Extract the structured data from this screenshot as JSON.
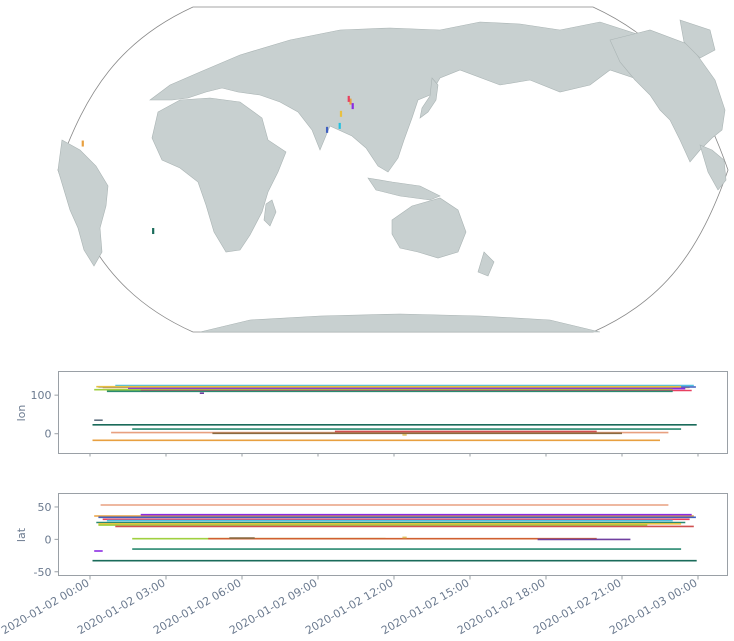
{
  "colors": {
    "land": "#c8d0d0",
    "tick_text": "#6b7a8f",
    "frame": "#9aa0a6"
  },
  "chart_data": [
    {
      "type": "map",
      "projection": "robinson",
      "central_longitude": 150,
      "markers": [
        {
          "lon": 126.5,
          "lat": 38.0,
          "color": "#e8a040"
        },
        {
          "lon": 127.8,
          "lat": 35.5,
          "color": "#8a2be2"
        },
        {
          "lon": 125.5,
          "lat": 39.5,
          "color": "#e84060"
        },
        {
          "lon": 121.5,
          "lat": 31.2,
          "color": "#e8c040"
        },
        {
          "lon": 121.0,
          "lat": 24.5,
          "color": "#20c0e0"
        },
        {
          "lon": 114.2,
          "lat": 22.3,
          "color": "#4060c0"
        },
        {
          "lon": -17.4,
          "lat": 14.7,
          "color": "#e8a040"
        },
        {
          "lon": 18.4,
          "lat": -33.9,
          "color": "#1a6b5a"
        }
      ]
    },
    {
      "type": "line",
      "ylabel": "lon",
      "ylim": [
        -50,
        160
      ],
      "yticks": [
        0,
        100
      ],
      "xlim": [
        "2020-01-02 00:00",
        "2020-01-03 00:00"
      ],
      "series": [
        {
          "color": "#e8a040",
          "x": [
            "2020-01-02 00:06",
            "2020-01-02 22:30"
          ],
          "y": [
            -17,
            -17
          ]
        },
        {
          "color": "#1a6b5a",
          "x": [
            "2020-01-02 00:06",
            "2020-01-02 23:57"
          ],
          "y": [
            23,
            23
          ]
        },
        {
          "color": "#2a8a70",
          "x": [
            "2020-01-02 01:40",
            "2020-01-02 23:20"
          ],
          "y": [
            12,
            12
          ]
        },
        {
          "color": "#e8a080",
          "x": [
            "2020-01-02 00:50",
            "2020-01-02 22:50"
          ],
          "y": [
            3,
            3
          ]
        },
        {
          "color": "#d05050",
          "x": [
            "2020-01-02 09:40",
            "2020-01-02 20:00"
          ],
          "y": [
            6,
            6
          ]
        },
        {
          "color": "#8a6a40",
          "x": [
            "2020-01-02 04:50",
            "2020-01-02 21:00"
          ],
          "y": [
            1,
            1
          ]
        },
        {
          "color": "#e0c060",
          "x": [
            "2020-01-02 12:20",
            "2020-01-02 12:30"
          ],
          "y": [
            -3,
            -3
          ]
        },
        {
          "color": "#50c0e0",
          "x": [
            "2020-01-02 01:00",
            "2020-01-02 23:50"
          ],
          "y": [
            125,
            125
          ]
        },
        {
          "color": "#e8a040",
          "x": [
            "2020-01-02 00:30",
            "2020-01-02 23:40"
          ],
          "y": [
            120,
            120
          ]
        },
        {
          "color": "#4060c0",
          "x": [
            "2020-01-02 00:20",
            "2020-01-02 23:55"
          ],
          "y": [
            121,
            121
          ]
        },
        {
          "color": "#8a2be2",
          "x": [
            "2020-01-02 01:30",
            "2020-01-02 23:30"
          ],
          "y": [
            117,
            117
          ]
        },
        {
          "color": "#a0d040",
          "x": [
            "2020-01-02 00:10",
            "2020-01-02 23:00"
          ],
          "y": [
            114,
            114
          ]
        },
        {
          "color": "#e84060",
          "x": [
            "2020-01-02 02:00",
            "2020-01-02 23:45"
          ],
          "y": [
            112,
            112
          ]
        },
        {
          "color": "#2a8a70",
          "x": [
            "2020-01-02 00:40",
            "2020-01-02 23:00"
          ],
          "y": [
            110,
            110
          ]
        },
        {
          "color": "#e8c040",
          "x": [
            "2020-01-02 00:15",
            "2020-01-02 23:20"
          ],
          "y": [
            122,
            122
          ]
        },
        {
          "color": "#7040a0",
          "x": [
            "2020-01-02 04:20",
            "2020-01-02 04:30"
          ],
          "y": [
            105,
            105
          ]
        },
        {
          "color": "#607080",
          "x": [
            "2020-01-02 00:10",
            "2020-01-02 00:30"
          ],
          "y": [
            35,
            35
          ]
        }
      ]
    },
    {
      "type": "line",
      "ylabel": "lat",
      "ylim": [
        -55,
        70
      ],
      "yticks": [
        -50,
        0,
        50
      ],
      "xlim": [
        "2020-01-02 00:00",
        "2020-01-03 00:00"
      ],
      "xticks": [
        "2020-01-02 00:00",
        "2020-01-02 03:00",
        "2020-01-02 06:00",
        "2020-01-02 09:00",
        "2020-01-02 12:00",
        "2020-01-02 15:00",
        "2020-01-02 18:00",
        "2020-01-02 21:00",
        "2020-01-03 00:00"
      ],
      "xtick_labels": [
        "2020-01-02 00:00",
        "2020-01-02 03:00",
        "2020-01-02 06:00",
        "2020-01-02 09:00",
        "2020-01-02 12:00",
        "2020-01-02 15:00",
        "2020-01-02 18:00",
        "2020-01-02 21:00",
        "2020-01-03 00:00"
      ],
      "series": [
        {
          "color": "#e8a080",
          "x": [
            "2020-01-02 00:25",
            "2020-01-02 22:50"
          ],
          "y": [
            53,
            53
          ]
        },
        {
          "color": "#1a6b5a",
          "x": [
            "2020-01-02 00:06",
            "2020-01-02 23:57"
          ],
          "y": [
            -33,
            -33
          ]
        },
        {
          "color": "#2a8a70",
          "x": [
            "2020-01-02 01:40",
            "2020-01-02 23:20"
          ],
          "y": [
            -15,
            -15
          ]
        },
        {
          "color": "#a0d040",
          "x": [
            "2020-01-02 01:40",
            "2020-01-02 11:40"
          ],
          "y": [
            1,
            1
          ]
        },
        {
          "color": "#d06030",
          "x": [
            "2020-01-02 04:40",
            "2020-01-02 20:00"
          ],
          "y": [
            1,
            1
          ]
        },
        {
          "color": "#8a6a40",
          "x": [
            "2020-01-02 05:30",
            "2020-01-02 06:30"
          ],
          "y": [
            2,
            2
          ]
        },
        {
          "color": "#7040a0",
          "x": [
            "2020-01-02 17:40",
            "2020-01-02 21:20"
          ],
          "y": [
            0,
            0
          ]
        },
        {
          "color": "#e0c060",
          "x": [
            "2020-01-02 12:20",
            "2020-01-02 12:30"
          ],
          "y": [
            3,
            3
          ]
        },
        {
          "color": "#8a2be2",
          "x": [
            "2020-01-02 00:10",
            "2020-01-02 00:30"
          ],
          "y": [
            -18,
            -18
          ]
        },
        {
          "color": "#e8a040",
          "x": [
            "2020-01-02 00:10",
            "2020-01-02 23:50"
          ],
          "y": [
            36,
            36
          ]
        },
        {
          "color": "#4060c0",
          "x": [
            "2020-01-02 00:20",
            "2020-01-02 23:55"
          ],
          "y": [
            34,
            34
          ]
        },
        {
          "color": "#e84060",
          "x": [
            "2020-01-02 00:30",
            "2020-01-02 23:40"
          ],
          "y": [
            31,
            31
          ]
        },
        {
          "color": "#50c0e0",
          "x": [
            "2020-01-02 00:40",
            "2020-01-02 23:00"
          ],
          "y": [
            29,
            29
          ]
        },
        {
          "color": "#2a8a70",
          "x": [
            "2020-01-02 00:15",
            "2020-01-02 23:30"
          ],
          "y": [
            26,
            26
          ]
        },
        {
          "color": "#e8c040",
          "x": [
            "2020-01-02 00:20",
            "2020-01-02 23:20"
          ],
          "y": [
            24,
            24
          ]
        },
        {
          "color": "#a0d040",
          "x": [
            "2020-01-02 00:20",
            "2020-01-02 22:00"
          ],
          "y": [
            22,
            22
          ]
        },
        {
          "color": "#8a2be2",
          "x": [
            "2020-01-02 02:00",
            "2020-01-02 23:45"
          ],
          "y": [
            38,
            38
          ]
        },
        {
          "color": "#d05050",
          "x": [
            "2020-01-02 01:00",
            "2020-01-02 23:50"
          ],
          "y": [
            20,
            20
          ]
        }
      ]
    }
  ]
}
